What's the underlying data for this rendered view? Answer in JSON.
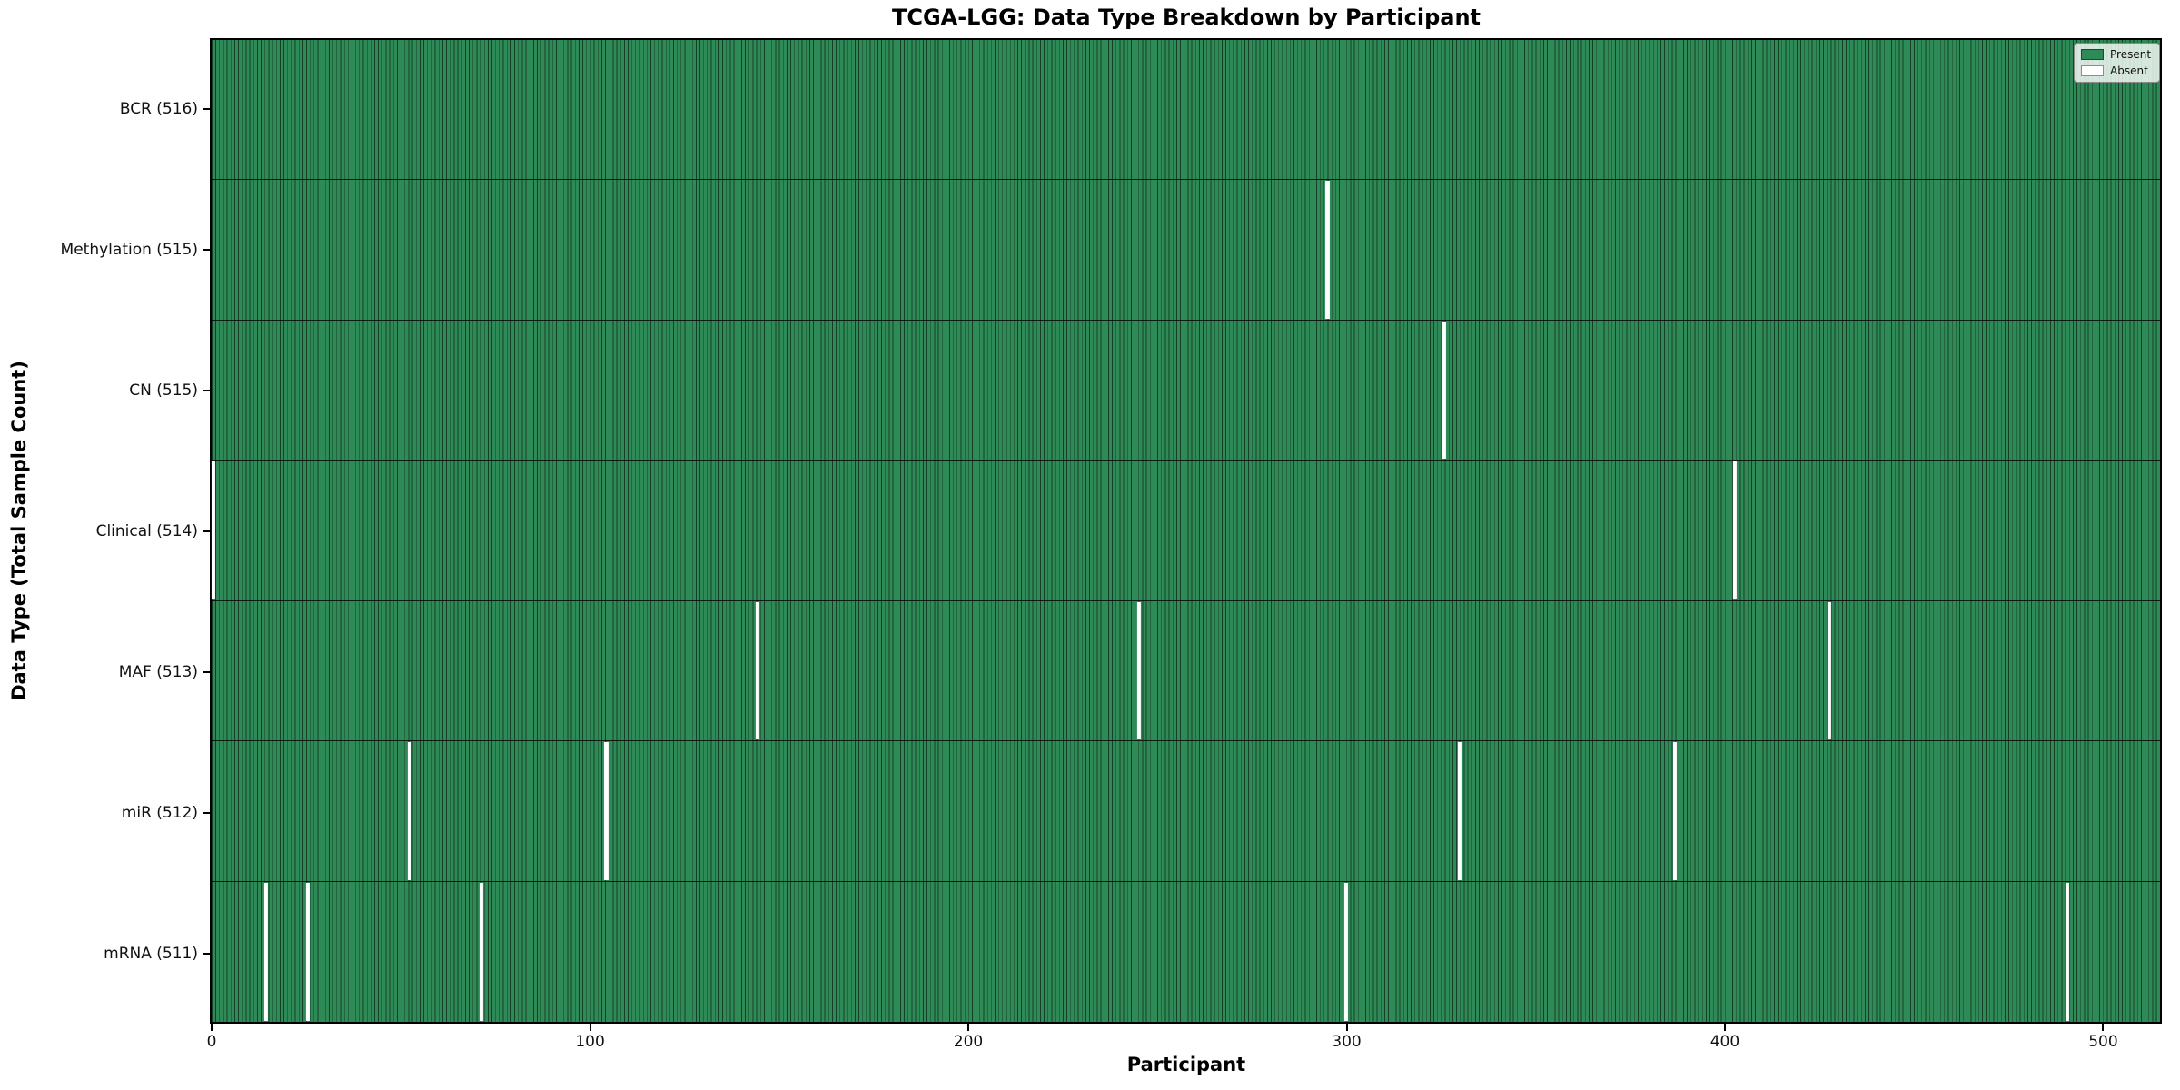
{
  "title": "TCGA-LGG: Data Type Breakdown by Participant",
  "axes": {
    "xlabel": "Participant",
    "ylabel": "Data Type (Total Sample Count)"
  },
  "legend": {
    "present_label": "Present",
    "absent_label": "Absent",
    "position": "upper right"
  },
  "colors": {
    "present": "#2e8b57",
    "absent": "#ffffff",
    "bar_edge": "rgba(0,0,0,0.55)",
    "row_border": "rgba(0,0,0,0.78)"
  },
  "chart_data": {
    "type": "heatmap",
    "title": "TCGA-LGG: Data Type Breakdown by Participant",
    "xlabel": "Participant",
    "ylabel": "Data Type (Total Sample Count)",
    "xlim": [
      -0.5,
      515.5
    ],
    "x_ticks": [
      0,
      100,
      200,
      300,
      400,
      500
    ],
    "total_participants": 516,
    "grid": false,
    "legend_entries": [
      "Present",
      "Absent"
    ],
    "legend_position": "upper right",
    "rows": [
      {
        "label": "BCR (516)",
        "name": "BCR",
        "count": 516,
        "absent_participants": []
      },
      {
        "label": "Methylation (515)",
        "name": "Methylation",
        "count": 515,
        "absent_participants": [
          295
        ]
      },
      {
        "label": "CN (515)",
        "name": "CN",
        "count": 515,
        "absent_participants": [
          326
        ]
      },
      {
        "label": "Clinical (514)",
        "name": "Clinical",
        "count": 514,
        "absent_participants": [
          0,
          403
        ]
      },
      {
        "label": "MAF (513)",
        "name": "MAF",
        "count": 513,
        "absent_participants": [
          144,
          245,
          428
        ]
      },
      {
        "label": "miR (512)",
        "name": "miR",
        "count": 512,
        "absent_participants": [
          52,
          104,
          330,
          387
        ]
      },
      {
        "label": "mRNA (511)",
        "name": "mRNA",
        "count": 511,
        "absent_participants": [
          14,
          25,
          71,
          300,
          491
        ]
      }
    ]
  }
}
